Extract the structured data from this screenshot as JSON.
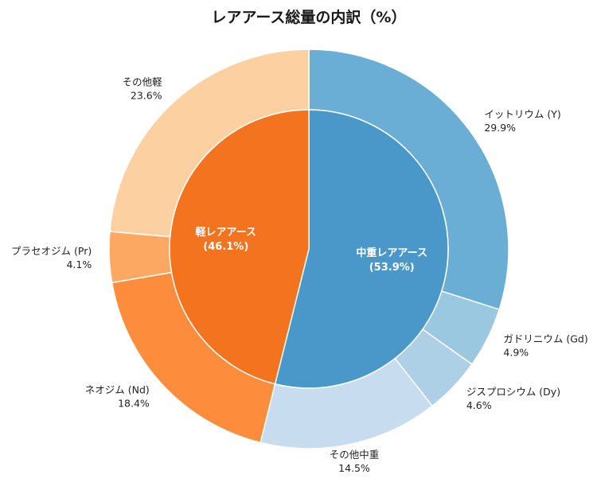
{
  "chart_data": {
    "type": "pie",
    "title": "レアアース総量の内訳（%）",
    "inner": [
      {
        "name": "中重レアアース",
        "value": 53.9,
        "pct_label": "(53.9%)",
        "color": "#4a98c9"
      },
      {
        "name": "軽レアアース",
        "value": 46.1,
        "pct_label": "(46.1%)",
        "color": "#f3731e"
      }
    ],
    "outer": [
      {
        "name": "イットリウム (Y)",
        "value": 29.9,
        "pct_label": "29.9%",
        "color": "#6aaed6"
      },
      {
        "name": "ガドリニウム (Gd)",
        "value": 4.9,
        "pct_label": "4.9%",
        "color": "#9ac8e0"
      },
      {
        "name": "ジスプロシウム (Dy)",
        "value": 4.6,
        "pct_label": "4.6%",
        "color": "#aed0e7"
      },
      {
        "name": "その他中重",
        "value": 14.5,
        "pct_label": "14.5%",
        "color": "#c8dcf0"
      },
      {
        "name": "ネオジム (Nd)",
        "value": 18.4,
        "pct_label": "18.4%",
        "color": "#fd8d3c"
      },
      {
        "name": "プラセオジム (Pr)",
        "value": 4.1,
        "pct_label": "4.1%",
        "color": "#fda862"
      },
      {
        "name": "その他軽",
        "value": 23.6,
        "pct_label": "23.6%",
        "color": "#fdd0a2"
      }
    ]
  }
}
